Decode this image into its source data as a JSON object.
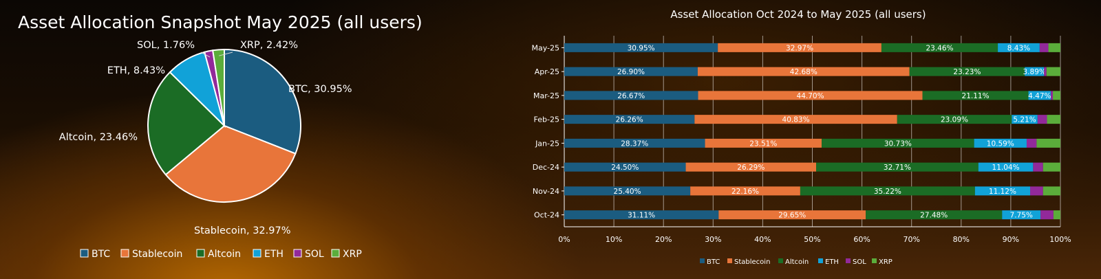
{
  "chart_data": [
    {
      "type": "pie",
      "title": "Asset Allocation Snapshot May 2025 (all users)",
      "categories": [
        "BTC",
        "Stablecoin",
        "Altcoin",
        "ETH",
        "SOL",
        "XRP"
      ],
      "values": [
        30.95,
        32.97,
        23.46,
        8.43,
        1.76,
        2.42
      ],
      "data_labels": [
        "BTC, 30.95%",
        "Stablecoin, 32.97%",
        "Altcoin, 23.46%",
        "ETH, 8.43%",
        "SOL, 1.76%",
        "XRP, 2.42%"
      ],
      "colors": [
        "#1b5c80",
        "#e8753a",
        "#1b6c25",
        "#11a2d8",
        "#92299a",
        "#5bad3b"
      ],
      "legend": "bottom"
    },
    {
      "type": "bar",
      "orientation": "horizontal",
      "stacked": "percent",
      "title": "Asset Allocation Oct 2024 to May 2025 (all users)",
      "categories": [
        "May-25",
        "Apr-25",
        "Mar-25",
        "Feb-25",
        "Jan-25",
        "Dec-24",
        "Nov-24",
        "Oct-24"
      ],
      "xlim": [
        0,
        100
      ],
      "xticks": [
        "0%",
        "10%",
        "20%",
        "30%",
        "40%",
        "50%",
        "60%",
        "70%",
        "80%",
        "90%",
        "100%"
      ],
      "grid": true,
      "legend": "bottom",
      "series": [
        {
          "name": "BTC",
          "color": "#1b5c80",
          "values": [
            30.95,
            26.9,
            26.67,
            26.26,
            28.37,
            24.5,
            25.4,
            31.11
          ],
          "labels": [
            "30.95%",
            "26.90%",
            "26.67%",
            "26.26%",
            "28.37%",
            "24.50%",
            "25.40%",
            "31.11%"
          ]
        },
        {
          "name": "Stablecoin",
          "color": "#e8753a",
          "values": [
            32.97,
            42.68,
            44.7,
            40.83,
            23.51,
            26.29,
            22.16,
            29.65
          ],
          "labels": [
            "32.97%",
            "42.68%",
            "44.70%",
            "40.83%",
            "23.51%",
            "26.29%",
            "22.16%",
            "29.65%"
          ]
        },
        {
          "name": "Altcoin",
          "color": "#1b6c25",
          "values": [
            23.46,
            23.23,
            21.11,
            23.09,
            30.73,
            32.71,
            35.22,
            27.48
          ],
          "labels": [
            "23.46%",
            "23.23%",
            "21.11%",
            "23.09%",
            "30.73%",
            "32.71%",
            "35.22%",
            "27.48%"
          ]
        },
        {
          "name": "ETH",
          "color": "#11a2d8",
          "values": [
            8.43,
            3.89,
            4.47,
            5.21,
            10.59,
            11.04,
            11.12,
            7.75
          ],
          "labels": [
            "8.43%",
            "3.89%",
            "4.47%",
            "5.21%",
            "10.59%",
            "11.04%",
            "11.12%",
            "7.75%"
          ]
        },
        {
          "name": "SOL",
          "color": "#92299a",
          "values": [
            1.76,
            0.5,
            0.4,
            1.9,
            2.0,
            2.0,
            2.6,
            2.6
          ],
          "labels": [
            "",
            "",
            "",
            "",
            "",
            "",
            "",
            ""
          ]
        },
        {
          "name": "XRP",
          "color": "#5bad3b",
          "values": [
            2.42,
            2.8,
            1.5,
            2.7,
            4.8,
            3.5,
            3.5,
            1.4
          ],
          "labels": [
            "",
            "",
            "",
            "",
            "",
            "",
            "",
            ""
          ]
        }
      ]
    }
  ]
}
